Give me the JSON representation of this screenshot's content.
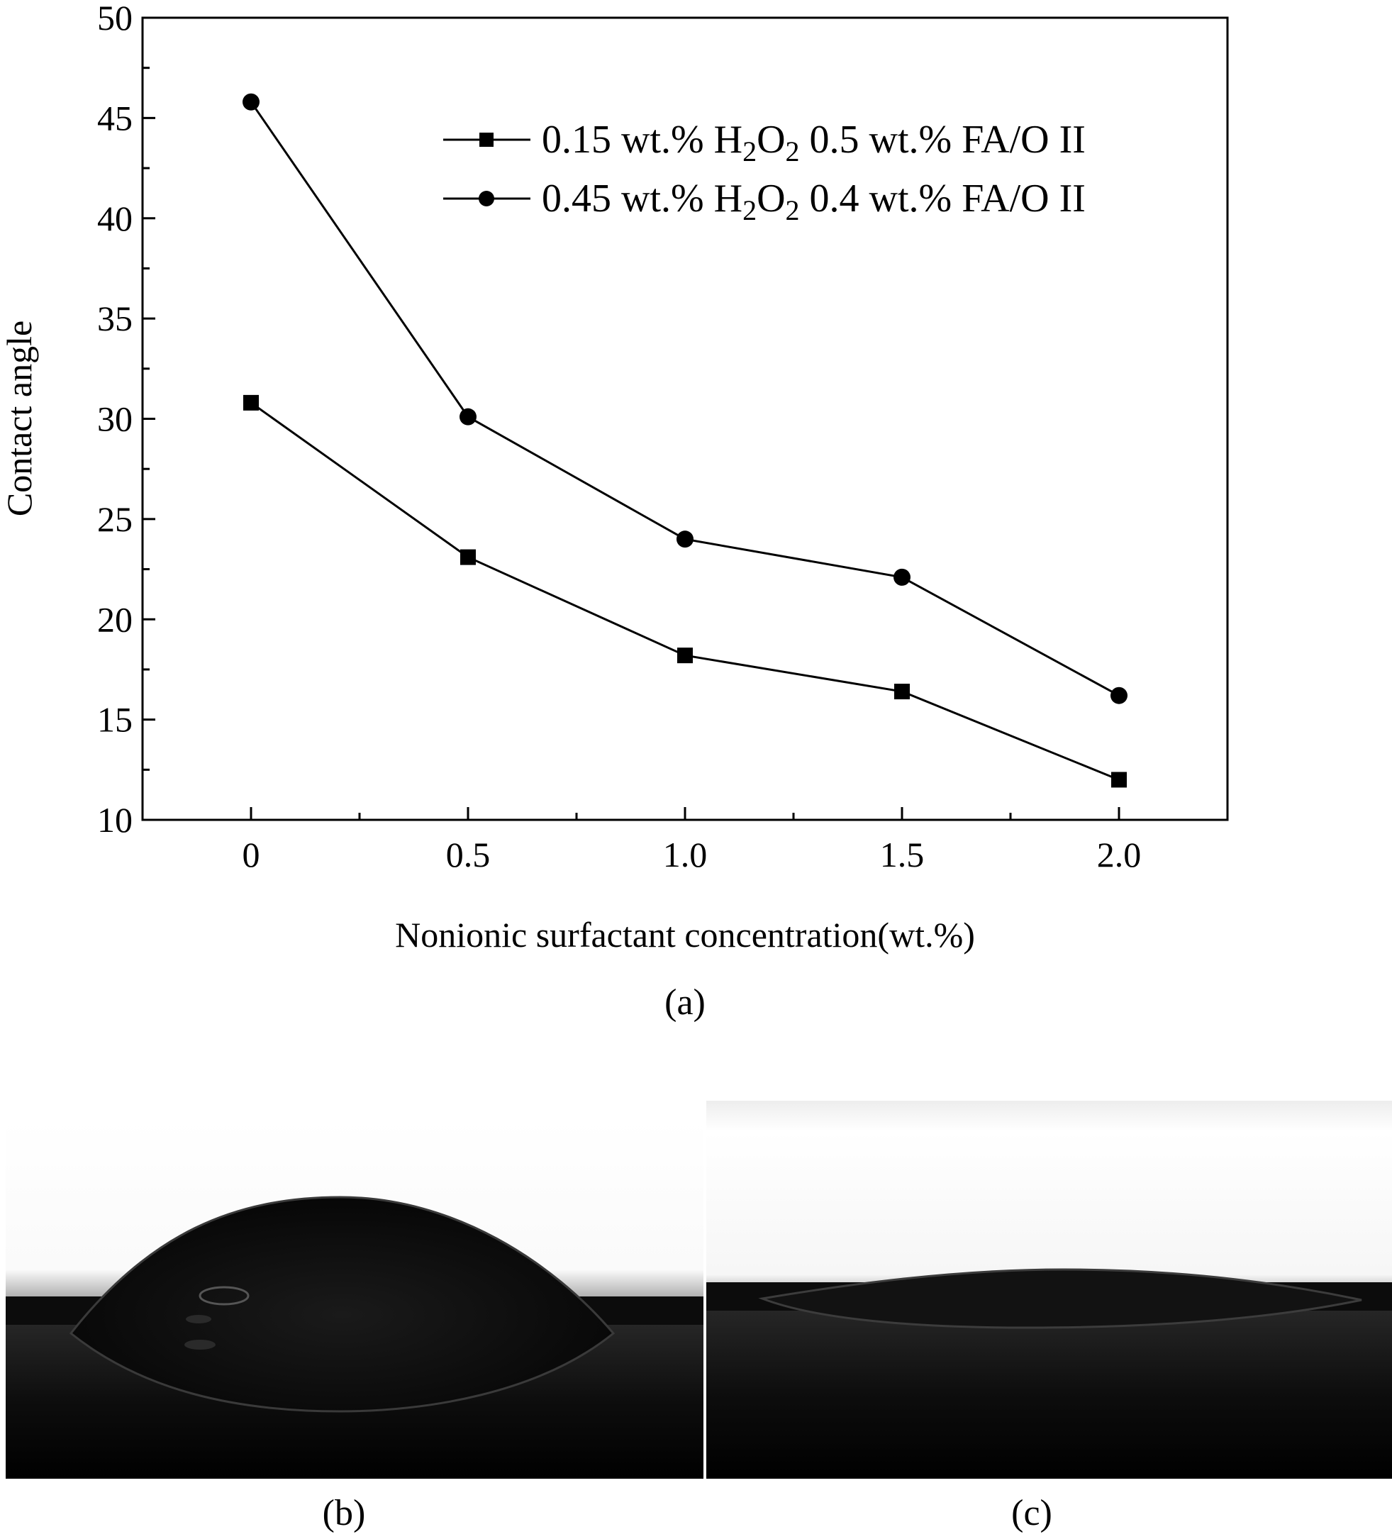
{
  "chart_data": {
    "type": "line",
    "title": "",
    "xlabel": "Nonionic surfactant concentration(wt.%)",
    "ylabel": "Contact angle",
    "x": [
      0,
      0.5,
      1.0,
      1.5,
      2.0
    ],
    "xticklabels": [
      "0",
      "0.5",
      "1.0",
      "1.5",
      "2.0"
    ],
    "xlim": [
      -0.25,
      2.25
    ],
    "ylim": [
      10,
      50
    ],
    "yticks": [
      10,
      15,
      20,
      25,
      30,
      35,
      40,
      45,
      50
    ],
    "grid": false,
    "legend_position": "top-right",
    "series": [
      {
        "name": "0.15 wt.% H2O2 0.5 wt.% FA/O II",
        "legend": {
          "pre": "0.15 wt.% H",
          "sub1": "2",
          "mid": "O",
          "sub2": "2",
          "post": " 0.5 wt.% FA/O II"
        },
        "marker": "square",
        "values": [
          30.8,
          23.1,
          18.2,
          16.4,
          12.0
        ]
      },
      {
        "name": "0.45 wt.% H2O2 0.4 wt.% FA/O II",
        "legend": {
          "pre": "0.45 wt.% H",
          "sub1": "2",
          "mid": "O",
          "sub2": "2",
          "post": " 0.4 wt.% FA/O II"
        },
        "marker": "circle",
        "values": [
          45.8,
          30.1,
          24.0,
          22.1,
          16.2
        ]
      }
    ]
  },
  "panels": {
    "a": "(a)",
    "b": "(b)",
    "c": "(c)"
  },
  "colors": {
    "line": "#000000",
    "droplet": "#0b0b0b",
    "background_light": "#ffffff"
  }
}
